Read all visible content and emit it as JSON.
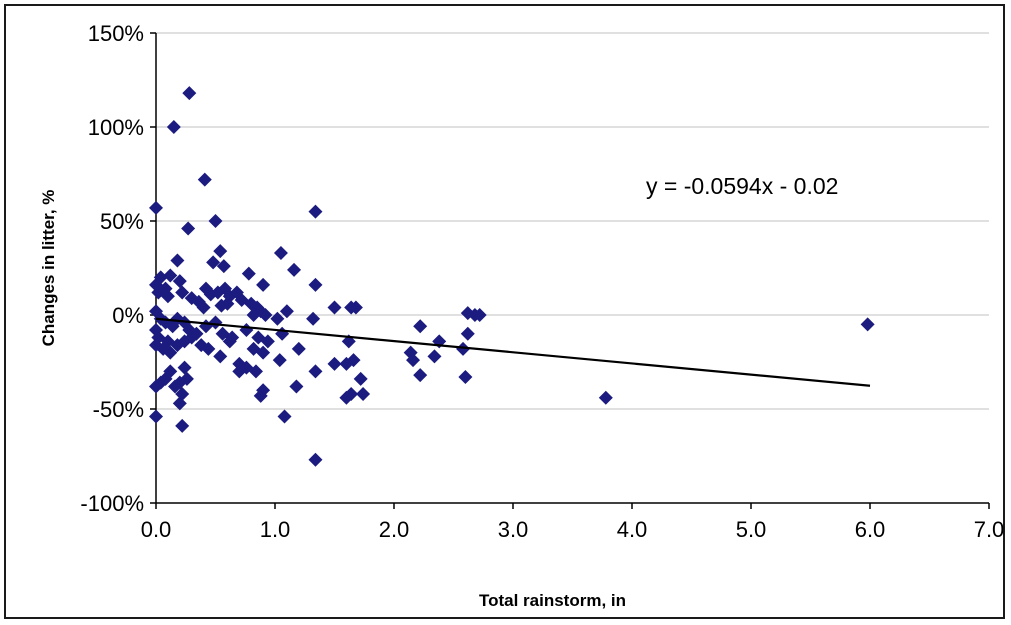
{
  "chart_data": {
    "type": "scatter",
    "title": "",
    "xlabel": "Total rainstorm, in",
    "ylabel": "Changes in litter, %",
    "xlim": [
      0,
      7
    ],
    "ylim": [
      -100,
      150
    ],
    "x_ticks": [
      "0.0",
      "1.0",
      "2.0",
      "3.0",
      "4.0",
      "5.0",
      "6.0",
      "7.0"
    ],
    "y_ticks": [
      "-100%",
      "-50%",
      "0%",
      "50%",
      "100%",
      "150%"
    ],
    "grid": "horizontal",
    "legend": "none",
    "marker": "diamond",
    "marker_color": "#1c1c80",
    "trendline": {
      "equation_label": "y = -0.0594x - 0.02",
      "slope": -0.0594,
      "intercept": -0.02,
      "x_range": [
        0,
        6.0
      ],
      "color": "#000000"
    },
    "series": [
      {
        "points": [
          [
            0.28,
            118
          ],
          [
            0.15,
            100
          ],
          [
            0.41,
            72
          ],
          [
            0.0,
            57
          ],
          [
            1.34,
            55
          ],
          [
            0.5,
            50
          ],
          [
            0.27,
            46
          ],
          [
            1.05,
            33
          ],
          [
            0.54,
            34
          ],
          [
            0.18,
            29
          ],
          [
            0.48,
            28
          ],
          [
            0.57,
            26
          ],
          [
            1.16,
            24
          ],
          [
            0.78,
            22
          ],
          [
            0.04,
            20
          ],
          [
            0.12,
            21
          ],
          [
            0.2,
            18
          ],
          [
            0.0,
            16
          ],
          [
            0.08,
            14
          ],
          [
            0.02,
            12
          ],
          [
            0.1,
            10
          ],
          [
            0.22,
            12
          ],
          [
            0.3,
            9
          ],
          [
            0.36,
            7
          ],
          [
            0.42,
            14
          ],
          [
            0.46,
            11
          ],
          [
            0.52,
            12
          ],
          [
            0.58,
            14
          ],
          [
            0.62,
            10
          ],
          [
            0.68,
            12
          ],
          [
            0.72,
            8
          ],
          [
            0.6,
            6
          ],
          [
            0.55,
            5
          ],
          [
            0.4,
            4
          ],
          [
            0.8,
            6
          ],
          [
            0.85,
            4
          ],
          [
            0.9,
            16
          ],
          [
            0.88,
            2
          ],
          [
            0.82,
            0
          ],
          [
            0.92,
            0
          ],
          [
            1.02,
            -2
          ],
          [
            1.1,
            2
          ],
          [
            1.34,
            16
          ],
          [
            1.5,
            4
          ],
          [
            1.64,
            4
          ],
          [
            1.68,
            4
          ],
          [
            1.32,
            -2
          ],
          [
            0.0,
            2
          ],
          [
            0.04,
            -2
          ],
          [
            0.08,
            -4
          ],
          [
            0.14,
            -6
          ],
          [
            0.18,
            -2
          ],
          [
            0.24,
            -4
          ],
          [
            0.28,
            -8
          ],
          [
            0.34,
            -10
          ],
          [
            0.42,
            -6
          ],
          [
            0.5,
            -4
          ],
          [
            0.56,
            -10
          ],
          [
            0.64,
            -12
          ],
          [
            0.76,
            -8
          ],
          [
            0.86,
            -12
          ],
          [
            0.94,
            -14
          ],
          [
            1.06,
            -10
          ],
          [
            0.0,
            -8
          ],
          [
            0.02,
            -12
          ],
          [
            0.0,
            -16
          ],
          [
            0.06,
            -18
          ],
          [
            0.1,
            -14
          ],
          [
            0.12,
            -20
          ],
          [
            0.18,
            -16
          ],
          [
            0.24,
            -14
          ],
          [
            0.3,
            -12
          ],
          [
            0.38,
            -16
          ],
          [
            0.44,
            -18
          ],
          [
            0.54,
            -22
          ],
          [
            0.62,
            -14
          ],
          [
            0.7,
            -26
          ],
          [
            0.76,
            -28
          ],
          [
            0.84,
            -30
          ],
          [
            0.82,
            -18
          ],
          [
            0.9,
            -20
          ],
          [
            1.04,
            -24
          ],
          [
            1.2,
            -18
          ],
          [
            1.34,
            -30
          ],
          [
            1.5,
            -26
          ],
          [
            1.6,
            -26
          ],
          [
            1.62,
            -14
          ],
          [
            1.66,
            -24
          ],
          [
            1.72,
            -34
          ],
          [
            1.74,
            -42
          ],
          [
            1.64,
            -42
          ],
          [
            1.6,
            -44
          ],
          [
            1.18,
            -38
          ],
          [
            0.9,
            -40
          ],
          [
            0.88,
            -43
          ],
          [
            0.7,
            -30
          ],
          [
            0.08,
            -34
          ],
          [
            0.12,
            -30
          ],
          [
            0.16,
            -38
          ],
          [
            0.2,
            -36
          ],
          [
            0.24,
            -28
          ],
          [
            0.26,
            -34
          ],
          [
            0.22,
            -42
          ],
          [
            0.2,
            -47
          ],
          [
            0.0,
            -38
          ],
          [
            0.04,
            -36
          ],
          [
            0.0,
            -54
          ],
          [
            0.22,
            -59
          ],
          [
            1.08,
            -54
          ],
          [
            1.34,
            -77
          ],
          [
            2.14,
            -20
          ],
          [
            2.16,
            -24
          ],
          [
            2.22,
            -6
          ],
          [
            2.22,
            -32
          ],
          [
            2.34,
            -22
          ],
          [
            2.38,
            -14
          ],
          [
            2.58,
            -18
          ],
          [
            2.6,
            -33
          ],
          [
            2.62,
            -10
          ],
          [
            2.62,
            1
          ],
          [
            2.68,
            0
          ],
          [
            2.72,
            0
          ],
          [
            3.78,
            -44
          ],
          [
            5.98,
            -5
          ]
        ]
      }
    ]
  }
}
